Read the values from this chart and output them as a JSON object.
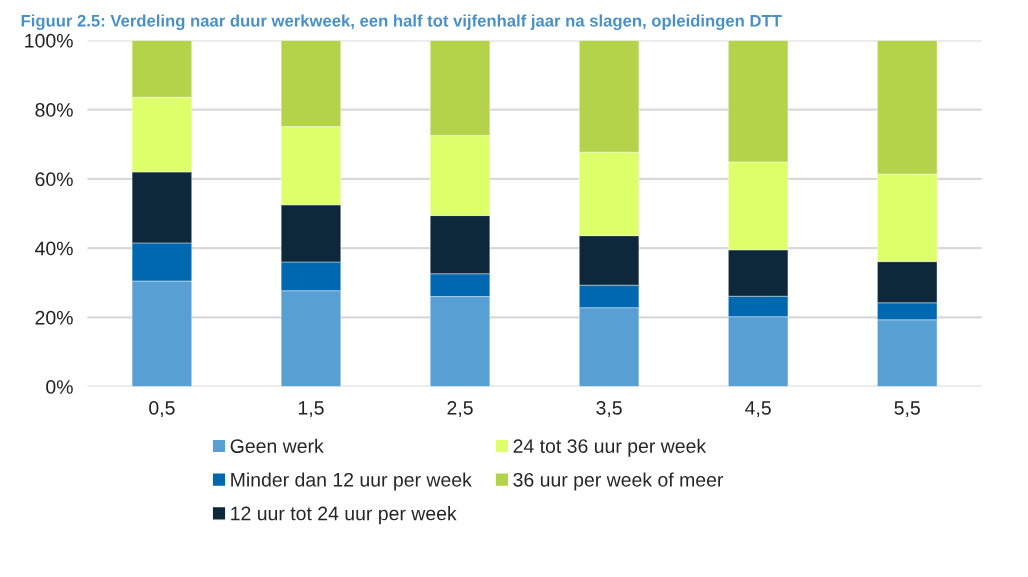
{
  "chart_data": {
    "type": "bar",
    "title": "Figuur 2.5: Verdeling naar duur werkweek, een half tot vijfenhalf jaar na slagen, opleidingen DTT",
    "categories": [
      "0,5",
      "1,5",
      "2,5",
      "3,5",
      "4,5",
      "5,5"
    ],
    "stacked": true,
    "series": [
      {
        "name": "Geen werk",
        "color": "#589fd4",
        "values": [
          30.5,
          27.7,
          26.0,
          22.8,
          20.2,
          19.3
        ]
      },
      {
        "name": "Minder dan 12 uur per week",
        "color": "#0068b1",
        "values": [
          11.0,
          8.3,
          6.6,
          6.5,
          5.9,
          4.9
        ]
      },
      {
        "name": "12 uur tot 24 uur per week",
        "color": "#0e283b",
        "values": [
          20.5,
          16.5,
          16.8,
          14.3,
          13.4,
          11.9
        ]
      },
      {
        "name": "24 tot 36 uur per week",
        "color": "#ddff6a",
        "values": [
          21.6,
          22.6,
          23.1,
          24.1,
          25.4,
          25.3
        ]
      },
      {
        "name": "36 uur per week of meer",
        "color": "#b4d24a",
        "values": [
          16.4,
          24.9,
          27.5,
          32.3,
          35.1,
          38.6
        ]
      }
    ],
    "ylim": [
      0,
      100
    ],
    "yticks": [
      {
        "value": 0,
        "label": "0%"
      },
      {
        "value": 20,
        "label": "20%"
      },
      {
        "value": 40,
        "label": "40%"
      },
      {
        "value": 60,
        "label": "60%"
      },
      {
        "value": 80,
        "label": "80%"
      },
      {
        "value": 100,
        "label": "100%"
      }
    ],
    "grid": "y",
    "legend": "bottom"
  }
}
